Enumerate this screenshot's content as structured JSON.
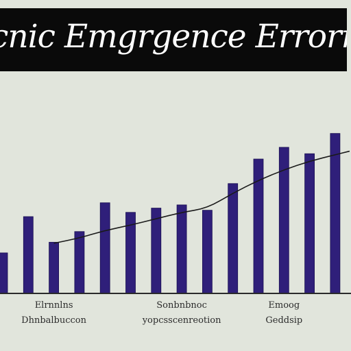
{
  "chart_data": {
    "type": "bar",
    "title": "cnic Emgrgence Errorrp",
    "values": [
      38,
      72,
      48,
      58,
      85,
      76,
      80,
      83,
      78,
      103,
      126,
      137,
      131,
      150
    ],
    "trend": [
      null,
      null,
      47,
      52,
      59,
      64,
      70,
      76,
      80,
      94,
      106,
      116,
      124,
      130
    ],
    "ylim": [
      0,
      180
    ],
    "grid": false,
    "xlabels": [
      {
        "lines": [
          "Elrnnlns",
          "Dhnbalbuccon"
        ],
        "at_bar": 2
      },
      {
        "lines": [
          "Sonbnbnoc",
          "yopcsscenreotion"
        ],
        "at_bar": 7
      },
      {
        "lines": [
          "Emoog",
          "Geddsip"
        ],
        "at_bar": 11
      }
    ]
  },
  "colors": {
    "bar": "#2f1f7a",
    "bar_edge": "#1a0f52",
    "trend": "#1a1a1a",
    "axis": "#2a2a2a",
    "background": "#e1e5dc",
    "banner": "#0a0a0a"
  }
}
